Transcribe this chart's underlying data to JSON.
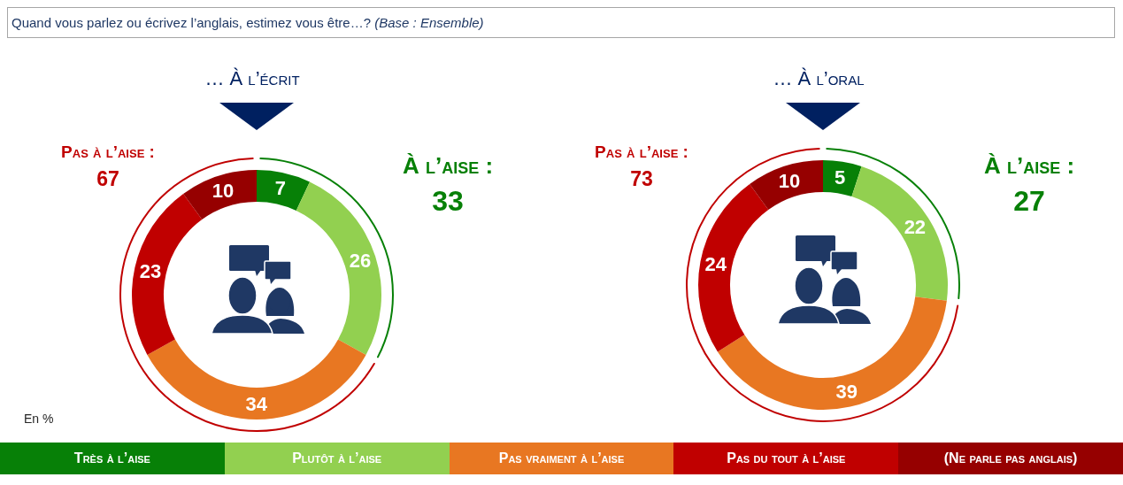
{
  "chart_data": {
    "type": "donut",
    "title": "Quand vous parlez ou écrivez l’anglais, estimez vous être…? (Base : Ensemble)",
    "categories": [
      "Très à l’aise",
      "Plutôt à l’aise",
      "Pas vraiment à l’aise",
      "Pas du tout à l’aise",
      "(Ne parle pas anglais)"
    ],
    "colors": [
      "#078007",
      "#92d050",
      "#e87722",
      "#c00000",
      "#960000"
    ],
    "series": [
      {
        "name": "… À l’écrit",
        "values": [
          7,
          26,
          34,
          23,
          10
        ]
      },
      {
        "name": "… À l’oral",
        "values": [
          5,
          22,
          39,
          24,
          10
        ]
      }
    ],
    "data_labels": true,
    "annotations": [
      "À l’aise : 33",
      "Pas à l’aise : 67",
      "À l’aise : 27",
      "Pas à l’aise : 73",
      "En %"
    ],
    "legend": "bottom"
  }
}
